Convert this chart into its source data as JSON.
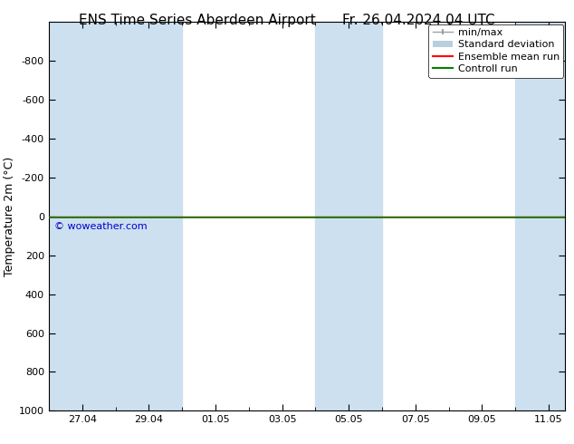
{
  "title": "ENS Time Series Aberdeen Airport      Fr. 26.04.2024 04 UTC",
  "ylabel": "Temperature 2m (°C)",
  "watermark": "© woweather.com",
  "ylim_bottom": 1000,
  "ylim_top": -1000,
  "yticks": [
    -800,
    -600,
    -400,
    -200,
    0,
    200,
    400,
    600,
    800,
    1000
  ],
  "xlim": [
    0,
    15.5
  ],
  "xtick_labels": [
    "27.04",
    "29.04",
    "01.05",
    "03.05",
    "05.05",
    "07.05",
    "09.05",
    "11.05"
  ],
  "xtick_positions": [
    1,
    3,
    5,
    7,
    9,
    11,
    13,
    15
  ],
  "shaded_regions": [
    [
      0.0,
      2.0
    ],
    [
      2.0,
      4.0
    ],
    [
      8.0,
      10.0
    ],
    [
      14.0,
      15.5
    ]
  ],
  "shaded_color": "#cce0f0",
  "ensemble_mean_color": "#ff0000",
  "control_run_color": "#008000",
  "background_color": "#ffffff",
  "font_family": "DejaVu Sans",
  "title_fontsize": 11,
  "axis_label_fontsize": 9,
  "tick_fontsize": 8,
  "legend_fontsize": 8,
  "watermark_color": "#0000cc",
  "watermark_fontsize": 8,
  "legend_items": [
    {
      "label": "min/max",
      "color": "#a0a0a0",
      "style": "errbar"
    },
    {
      "label": "Standard deviation",
      "color": "#b8cfe0",
      "style": "rect"
    },
    {
      "label": "Ensemble mean run",
      "color": "#ff0000",
      "style": "line"
    },
    {
      "label": "Controll run",
      "color": "#008000",
      "style": "line"
    }
  ]
}
